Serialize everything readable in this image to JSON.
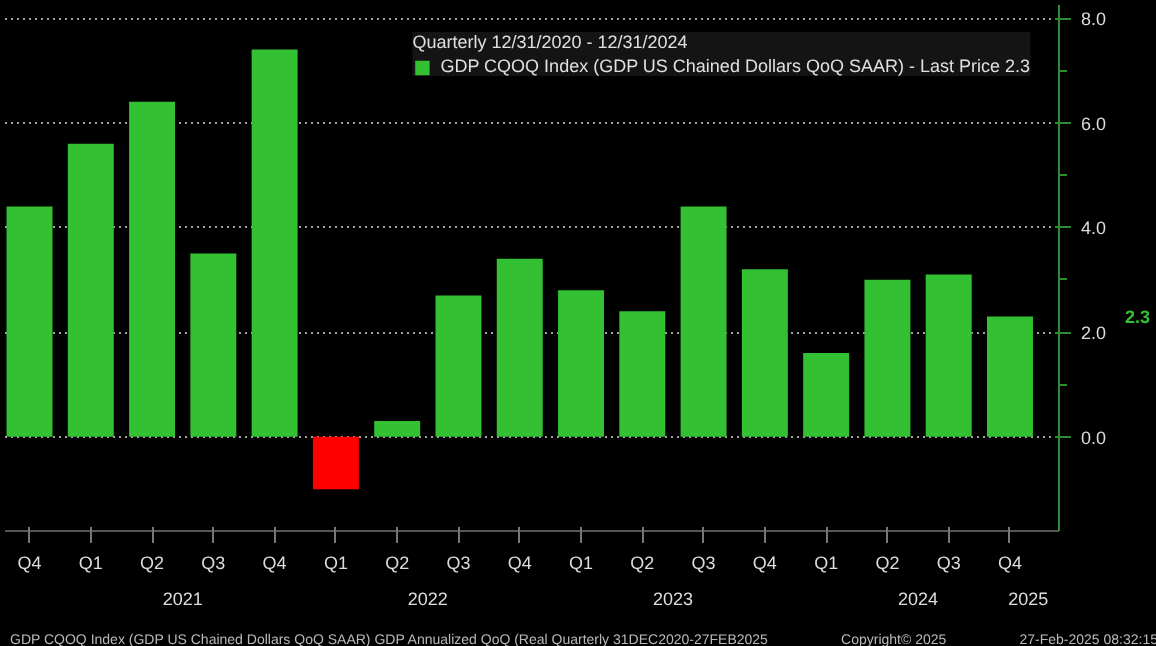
{
  "chart_data": {
    "type": "bar",
    "categories": [
      "Q4",
      "Q1",
      "Q2",
      "Q3",
      "Q4",
      "Q1",
      "Q2",
      "Q3",
      "Q4",
      "Q1",
      "Q2",
      "Q3",
      "Q4",
      "Q1",
      "Q2",
      "Q3",
      "Q4"
    ],
    "series": [
      {
        "name": "GDP CQOQ Index (GDP US Chained Dollars QoQ SAAR) - Last Price 2.3",
        "color": "#33c033",
        "values": [
          4.4,
          5.6,
          6.4,
          3.5,
          7.4,
          -1.0,
          0.3,
          2.7,
          3.4,
          2.8,
          2.4,
          4.4,
          3.2,
          1.6,
          3.0,
          3.1,
          2.3
        ],
        "colors": [
          "#33c033",
          "#33c033",
          "#33c033",
          "#33c033",
          "#33c033",
          "#ff0000",
          "#33c033",
          "#33c033",
          "#33c033",
          "#33c033",
          "#33c033",
          "#33c033",
          "#33c033",
          "#33c033",
          "#33c033",
          "#33c033",
          "#33c033"
        ]
      }
    ],
    "legend_title": "Quarterly 12/31/2020 - 12/31/2024",
    "legend": "top right",
    "ylim": [
      -1.8,
      8.25
    ],
    "yticks": [
      {
        "value": 0,
        "label": "0.0"
      },
      {
        "value": 2,
        "label": "2.0"
      },
      {
        "value": 4,
        "label": "4.0"
      },
      {
        "value": 6,
        "label": "6.0"
      },
      {
        "value": 8,
        "label": "8.0"
      }
    ],
    "grid": "y",
    "annotations": [
      "2021",
      "2022",
      "2023",
      "2024",
      "2025",
      "2.3",
      "GDP CQOQ Index (GDP US Chained Dollars QoQ SAAR) GDP Annualized QoQ (Real Quarterly 31DEC2020-27FEB2025",
      "Copyright© 2025",
      "27-Feb-2025 08:32:15"
    ]
  }
}
